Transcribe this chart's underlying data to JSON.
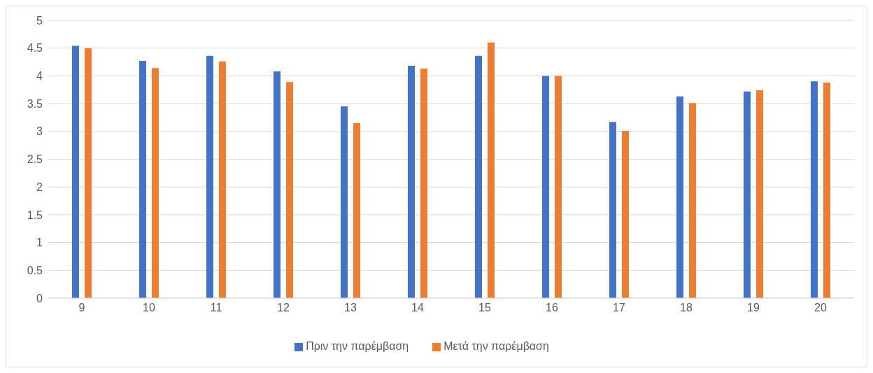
{
  "chart_data": {
    "type": "bar",
    "categories": [
      "9",
      "10",
      "11",
      "12",
      "13",
      "14",
      "15",
      "16",
      "17",
      "18",
      "19",
      "20"
    ],
    "series": [
      {
        "name": "Πριν την παρέμβαση",
        "color": "#4472c4",
        "values": [
          4.54,
          4.27,
          4.36,
          4.08,
          3.45,
          4.18,
          4.36,
          4.0,
          3.17,
          3.63,
          3.72,
          3.9
        ]
      },
      {
        "name": "Μετά την παρέμβαση",
        "color": "#ed7d31",
        "values": [
          4.5,
          4.14,
          4.26,
          3.89,
          3.15,
          4.13,
          4.6,
          4.0,
          3.01,
          3.51,
          3.74,
          3.88
        ]
      }
    ],
    "ylim": [
      0,
      5
    ],
    "yticks": [
      0,
      0.5,
      1,
      1.5,
      2,
      2.5,
      3,
      3.5,
      4,
      4.5,
      5
    ],
    "grid": "y",
    "legend": "bottom"
  }
}
